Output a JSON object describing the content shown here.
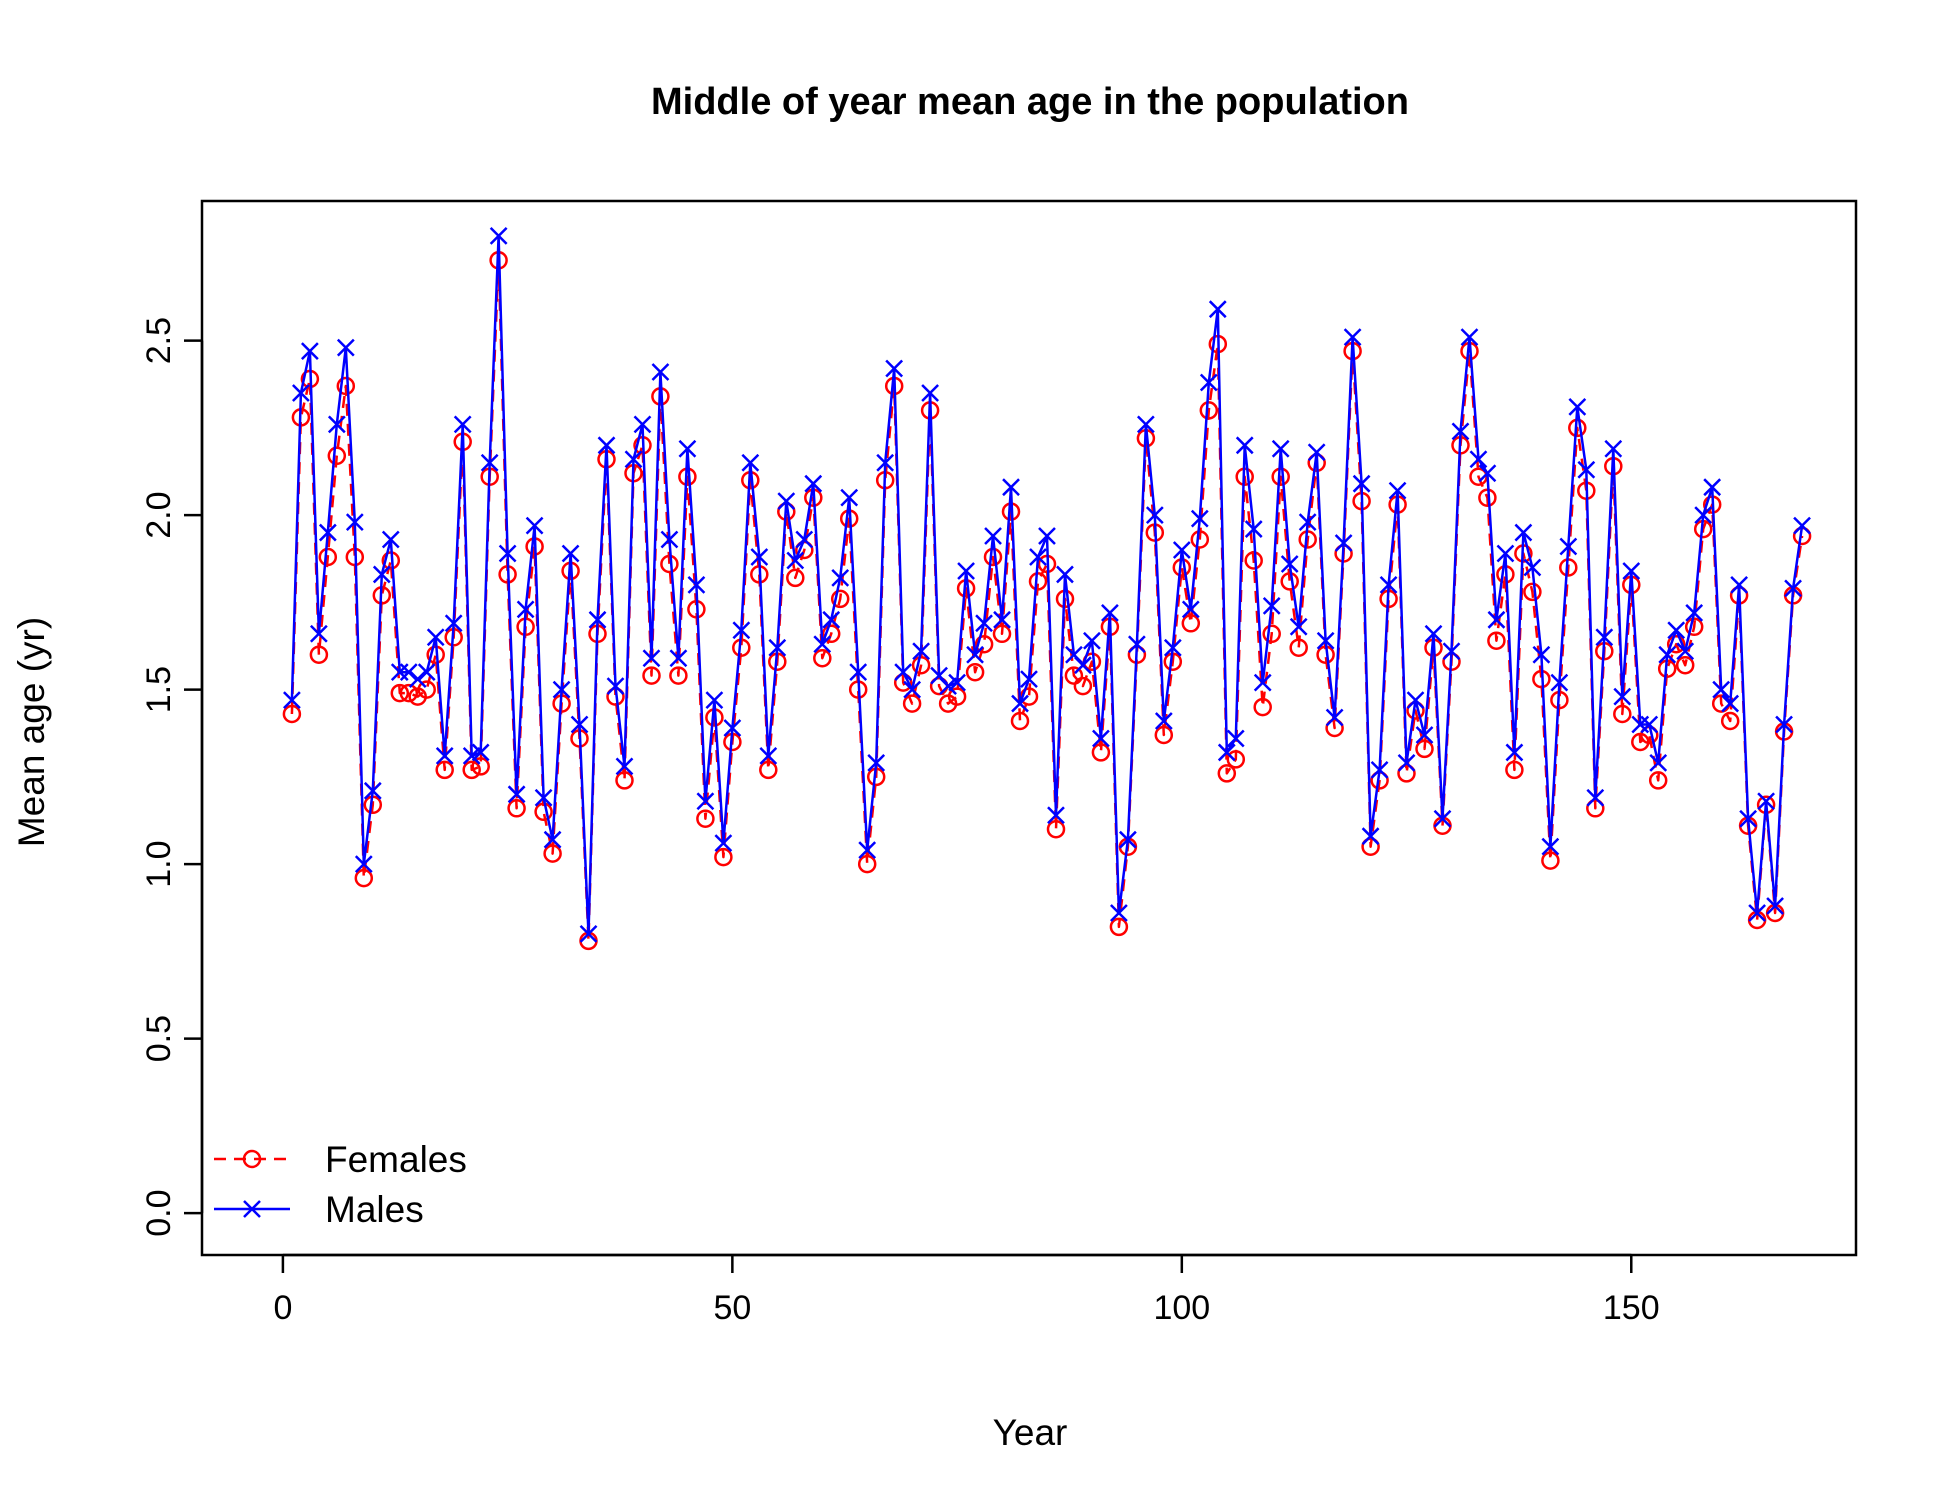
{
  "chart_data": {
    "type": "line",
    "title": "Middle of year mean age in the population",
    "xlabel": "Year",
    "ylabel": "Mean age (yr)",
    "xlim": [
      -9,
      175
    ],
    "ylim": [
      -0.12,
      2.9
    ],
    "x_ticks": [
      0,
      50,
      100,
      150
    ],
    "y_ticks": [
      0.0,
      0.5,
      1.0,
      1.5,
      2.0,
      2.5
    ],
    "x_tick_labels": [
      "0",
      "50",
      "100",
      "150"
    ],
    "y_tick_labels": [
      "0.0",
      "0.5",
      "1.0",
      "1.5",
      "2.0",
      "2.5"
    ],
    "grid": false,
    "legend_position": "bottom-left",
    "x_start": 1,
    "series": [
      {
        "name": "Females",
        "color": "#ff0000",
        "line": "dashed",
        "marker": "circle",
        "values": [
          1.43,
          2.28,
          2.39,
          1.6,
          1.88,
          2.17,
          2.37,
          1.88,
          0.96,
          1.17,
          1.77,
          1.87,
          1.49,
          1.49,
          1.48,
          1.5,
          1.6,
          1.27,
          1.65,
          2.21,
          1.27,
          1.28,
          2.11,
          2.73,
          1.83,
          1.16,
          1.68,
          1.91,
          1.15,
          1.03,
          1.46,
          1.84,
          1.36,
          0.78,
          1.66,
          2.16,
          1.48,
          1.24,
          2.12,
          2.2,
          1.54,
          2.34,
          1.86,
          1.54,
          2.11,
          1.73,
          1.13,
          1.42,
          1.02,
          1.35,
          1.62,
          2.1,
          1.83,
          1.27,
          1.58,
          2.01,
          1.82,
          1.9,
          2.05,
          1.59,
          1.66,
          1.76,
          1.99,
          1.5,
          1.0,
          1.25,
          2.1,
          2.37,
          1.52,
          1.46,
          1.57,
          2.3,
          1.51,
          1.46,
          1.48,
          1.79,
          1.55,
          1.63,
          1.88,
          1.66,
          2.01,
          1.41,
          1.48,
          1.81,
          1.86,
          1.1,
          1.76,
          1.54,
          1.51,
          1.58,
          1.32,
          1.68,
          0.82,
          1.05,
          1.6,
          2.22,
          1.95,
          1.37,
          1.58,
          1.85,
          1.69,
          1.93,
          2.3,
          2.49,
          1.26,
          1.3,
          2.11,
          1.87,
          1.45,
          1.66,
          2.11,
          1.81,
          1.62,
          1.93,
          2.15,
          1.6,
          1.39,
          1.89,
          2.47,
          2.04,
          1.05,
          1.24,
          1.76,
          2.03,
          1.26,
          1.44,
          1.33,
          1.62,
          1.11,
          1.58,
          2.2,
          2.47,
          2.11,
          2.05,
          1.64,
          1.83,
          1.27,
          1.89,
          1.78,
          1.53,
          1.01,
          1.47,
          1.85,
          2.25,
          2.07,
          1.16,
          1.61,
          2.14,
          1.43,
          1.8,
          1.35,
          1.37,
          1.24,
          1.56,
          1.63,
          1.57,
          1.68,
          1.96,
          2.03,
          1.46,
          1.41,
          1.77,
          1.11,
          0.84,
          1.17,
          0.86,
          1.38,
          1.77,
          1.94
        ]
      },
      {
        "name": "Males",
        "color": "#0000ff",
        "line": "solid",
        "marker": "cross",
        "values": [
          1.47,
          2.35,
          2.47,
          1.66,
          1.95,
          2.26,
          2.48,
          1.98,
          1.0,
          1.21,
          1.83,
          1.93,
          1.55,
          1.55,
          1.53,
          1.55,
          1.65,
          1.31,
          1.69,
          2.26,
          1.31,
          1.32,
          2.15,
          2.8,
          1.89,
          1.2,
          1.73,
          1.97,
          1.19,
          1.07,
          1.5,
          1.89,
          1.4,
          0.8,
          1.7,
          2.2,
          1.51,
          1.28,
          2.16,
          2.26,
          1.59,
          2.41,
          1.93,
          1.59,
          2.19,
          1.8,
          1.18,
          1.47,
          1.06,
          1.39,
          1.67,
          2.15,
          1.88,
          1.31,
          1.62,
          2.04,
          1.87,
          1.93,
          2.09,
          1.63,
          1.7,
          1.82,
          2.05,
          1.55,
          1.04,
          1.29,
          2.15,
          2.42,
          1.55,
          1.5,
          1.61,
          2.35,
          1.54,
          1.51,
          1.52,
          1.84,
          1.6,
          1.69,
          1.94,
          1.7,
          2.08,
          1.46,
          1.53,
          1.88,
          1.94,
          1.14,
          1.83,
          1.6,
          1.57,
          1.64,
          1.36,
          1.72,
          0.86,
          1.07,
          1.63,
          2.26,
          2.0,
          1.41,
          1.62,
          1.9,
          1.73,
          1.99,
          2.38,
          2.59,
          1.32,
          1.36,
          2.2,
          1.96,
          1.52,
          1.74,
          2.19,
          1.86,
          1.68,
          1.98,
          2.18,
          1.64,
          1.42,
          1.92,
          2.51,
          2.09,
          1.08,
          1.27,
          1.8,
          2.07,
          1.29,
          1.47,
          1.37,
          1.66,
          1.13,
          1.61,
          2.24,
          2.51,
          2.16,
          2.12,
          1.7,
          1.89,
          1.32,
          1.95,
          1.85,
          1.6,
          1.05,
          1.52,
          1.91,
          2.31,
          2.13,
          1.19,
          1.65,
          2.19,
          1.48,
          1.84,
          1.4,
          1.4,
          1.29,
          1.6,
          1.67,
          1.61,
          1.72,
          2.0,
          2.08,
          1.5,
          1.46,
          1.8,
          1.13,
          0.86,
          1.18,
          0.88,
          1.4,
          1.79,
          1.97
        ]
      }
    ]
  }
}
